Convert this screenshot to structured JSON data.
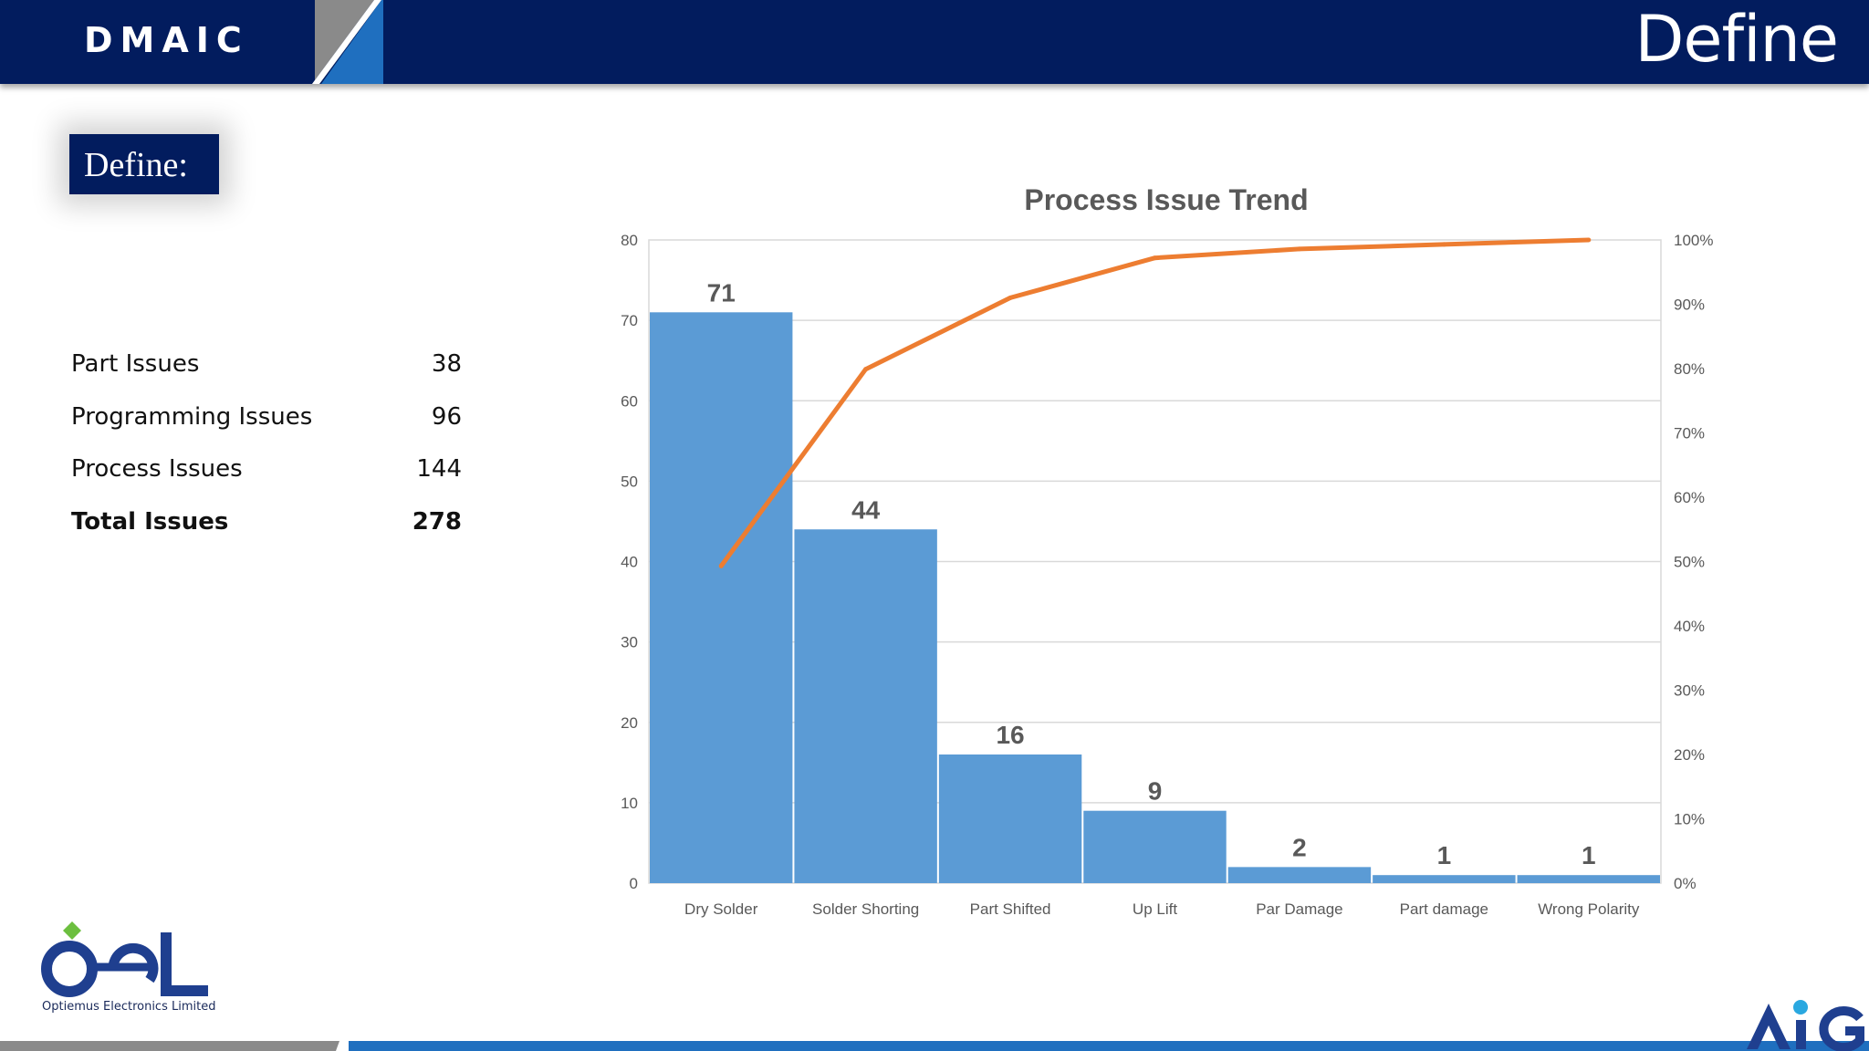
{
  "header": {
    "brand": "DMAIC",
    "title": "Define",
    "colors": {
      "navy": "#021c5e",
      "accent_blue": "#1f6fbf",
      "stripe_gray": "#8a8a8a"
    }
  },
  "section": {
    "label": "Define:"
  },
  "issues": [
    {
      "label": "Part Issues",
      "value": "38"
    },
    {
      "label": "Programming Issues",
      "value": "96"
    },
    {
      "label": "Process Issues",
      "value": "144"
    },
    {
      "label": "Total Issues",
      "value": "278"
    }
  ],
  "chart_data": {
    "type": "bar",
    "title": "Process Issue Trend",
    "categories": [
      "Dry Solder",
      "Solder Shorting",
      "Part Shifted",
      "Up Lift",
      "Par Damage",
      "Part damage",
      "Wrong Polarity"
    ],
    "values": [
      71,
      44,
      16,
      9,
      2,
      1,
      1
    ],
    "data_labels": [
      "71",
      "44",
      "16",
      "9",
      "2",
      "1",
      "1"
    ],
    "ylim": [
      0,
      80
    ],
    "yticks": [
      "0",
      "10",
      "20",
      "30",
      "40",
      "50",
      "60",
      "70",
      "80"
    ],
    "y2lim": [
      0,
      100
    ],
    "y2ticks": [
      "0%",
      "10%",
      "20%",
      "30%",
      "40%",
      "50%",
      "60%",
      "70%",
      "80%",
      "90%",
      "100%"
    ],
    "cumulative_percent": [
      49.3,
      79.9,
      91.0,
      97.2,
      98.6,
      99.3,
      100
    ],
    "grid": true,
    "colors": {
      "bar": "#5b9bd5",
      "line": "#ed7d31"
    }
  },
  "logo": {
    "name": "oel-logo",
    "text": "OeL",
    "subtitle": "Optiemus Electronics Limited"
  },
  "footer_logo": {
    "name": "aig-logo",
    "text": "AIG"
  }
}
